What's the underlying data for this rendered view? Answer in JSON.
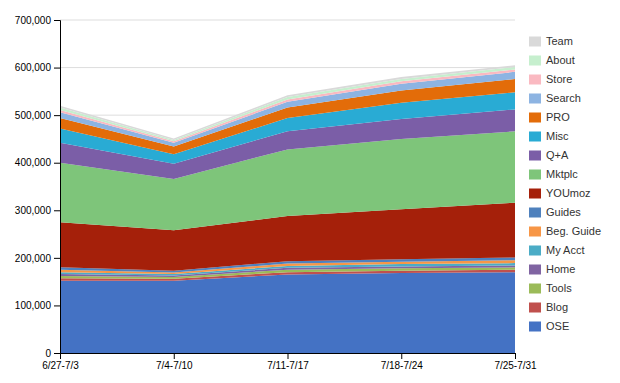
{
  "chart_data": {
    "type": "area",
    "stacked": true,
    "grid": true,
    "legend": "right",
    "categories": [
      "6/27-7/3",
      "7/4-7/10",
      "7/11-7/17",
      "7/18-7/24",
      "7/25-7/31"
    ],
    "ylim": [
      0,
      700000
    ],
    "yticks": [
      0,
      {
        "value": 100000,
        "label": "100,000"
      },
      {
        "value": 200000,
        "label": "200,000"
      },
      {
        "value": 300000,
        "label": "300,000"
      },
      {
        "value": 400000,
        "label": "400,000"
      },
      {
        "value": 500000,
        "label": "500,000"
      },
      {
        "value": 600000,
        "label": "600,000"
      },
      {
        "value": 700000,
        "label": "700,000"
      }
    ],
    "series": [
      {
        "name": "OSE",
        "color": "#4472C4",
        "values": [
          152000,
          152000,
          165000,
          168000,
          170000
        ]
      },
      {
        "name": "Blog",
        "color": "#C0504D",
        "values": [
          5000,
          4000,
          5000,
          5000,
          5000
        ]
      },
      {
        "name": "Tools",
        "color": "#9BBB59",
        "values": [
          5000,
          4000,
          5000,
          5000,
          5000
        ]
      },
      {
        "name": "Home",
        "color": "#8064A2",
        "values": [
          4000,
          3000,
          4000,
          4000,
          4000
        ]
      },
      {
        "name": "My Acct",
        "color": "#4BACC6",
        "values": [
          4000,
          3000,
          4000,
          5000,
          5000
        ]
      },
      {
        "name": "Beg. Guide",
        "color": "#F79646",
        "values": [
          5000,
          3000,
          5000,
          5000,
          6000
        ]
      },
      {
        "name": "Guides",
        "color": "#4F81BD",
        "values": [
          5000,
          4000,
          5000,
          5000,
          6000
        ]
      },
      {
        "name": "YOUmoz",
        "color": "#A5200A",
        "values": [
          95000,
          85000,
          95000,
          105000,
          115000
        ]
      },
      {
        "name": "Mktplc",
        "color": "#7EC57A",
        "values": [
          125000,
          108000,
          140000,
          148000,
          150000
        ]
      },
      {
        "name": "Q+A",
        "color": "#7B5EA7",
        "values": [
          42000,
          32000,
          38000,
          42000,
          46000
        ]
      },
      {
        "name": "Misc",
        "color": "#29ABD4",
        "values": [
          30000,
          20000,
          28000,
          34000,
          36000
        ]
      },
      {
        "name": "PRO",
        "color": "#E36C09",
        "values": [
          22000,
          16000,
          22000,
          26000,
          28000
        ]
      },
      {
        "name": "Search",
        "color": "#8DB4E2",
        "values": [
          12000,
          8000,
          12000,
          14000,
          15000
        ]
      },
      {
        "name": "Store",
        "color": "#FAB9C1",
        "values": [
          5000,
          3000,
          5000,
          5000,
          5000
        ]
      },
      {
        "name": "About",
        "color": "#C6EFCE",
        "values": [
          5000,
          3000,
          5000,
          5000,
          5000
        ]
      },
      {
        "name": "Team",
        "color": "#D9D9D9",
        "values": [
          4000,
          3000,
          4000,
          4000,
          4000
        ]
      }
    ]
  }
}
